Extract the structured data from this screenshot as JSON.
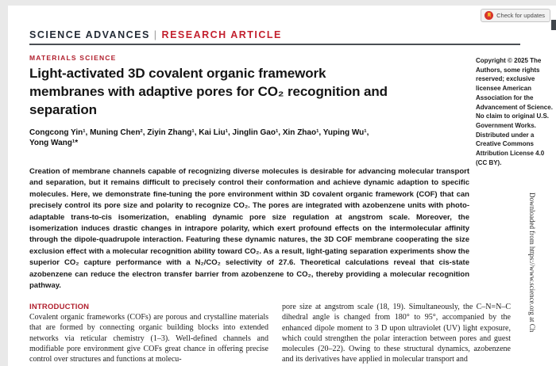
{
  "chrome": {
    "check_updates_label": "Check for updates"
  },
  "header": {
    "journal": "SCIENCE ADVANCES",
    "divider": "|",
    "article_type": "RESEARCH ARTICLE"
  },
  "article": {
    "section_label": "MATERIALS SCIENCE",
    "title": "Light-activated 3D covalent organic framework membranes with adaptive pores for CO₂ recognition and separation",
    "authors": "Congcong Yin¹, Muning Chen², Ziyin Zhang¹, Kai Liu¹, Jinglin Gao¹, Xin Zhao¹, Yuping Wu¹, Yong Wang¹*",
    "abstract": "Creation of membrane channels capable of recognizing diverse molecules is desirable for advancing molecular transport and separation, but it remains difficult to precisely control their conformation and achieve dynamic adaption to specific molecules. Here, we demonstrate fine-tuning the pore environment within 3D covalent organic framework (COF) that can precisely control its pore size and polarity to recognize CO₂. The pores are integrated with azobenzene units with photo-adaptable trans-to-cis isomerization, enabling dynamic pore size regulation at angstrom scale. Moreover, the isomerization induces drastic changes in intrapore polarity, which exert profound effects on the intermolecular affinity through the dipole-quadrupole interaction. Featuring these dynamic natures, the 3D COF membrane cooperating the size exclusion effect with a molecular recognition ability toward CO₂. As a result, light-gating separation experiments show the superior CO₂ capture performance with a N₂/CO₂ selectivity of 27.6. Theoretical calculations reveal that cis-state azobenzene can reduce the electron transfer barrier from azobenzene to CO₂, thereby providing a molecular recognition pathway.",
    "copyright": "Copyright © 2025 The Authors, some rights reserved; exclusive licensee American Association for the Advancement of Science. No claim to original U.S. Government Works. Distributed under a Creative Commons Attribution License 4.0 (CC BY).",
    "intro_heading": "INTRODUCTION",
    "intro_left": "Covalent organic frameworks (COFs) are porous and crystalline materials that are formed by connecting organic building blocks into extended networks via reticular chemistry (1–3). Well-defined channels and modifiable pore environment give COFs great chance in offering precise control over structures and functions at molecu-",
    "intro_right": "pore size at angstrom scale (18, 19). Simultaneously, the C–N=N–C dihedral angle is changed from 180° to 95°, accompanied by the enhanced dipole moment to 3 D upon ultraviolet (UV) light exposure, which could strengthen the polar interaction between pores and guest molecules (20–22). Owing to these structural dynamics, azobenzene and its derivatives have applied in molecular transport and",
    "sidebar_note": "Downloaded from https://www.science.org at Ch",
    "colors": {
      "accent_red": "#b81f2d",
      "header_dark": "#232b36"
    }
  }
}
